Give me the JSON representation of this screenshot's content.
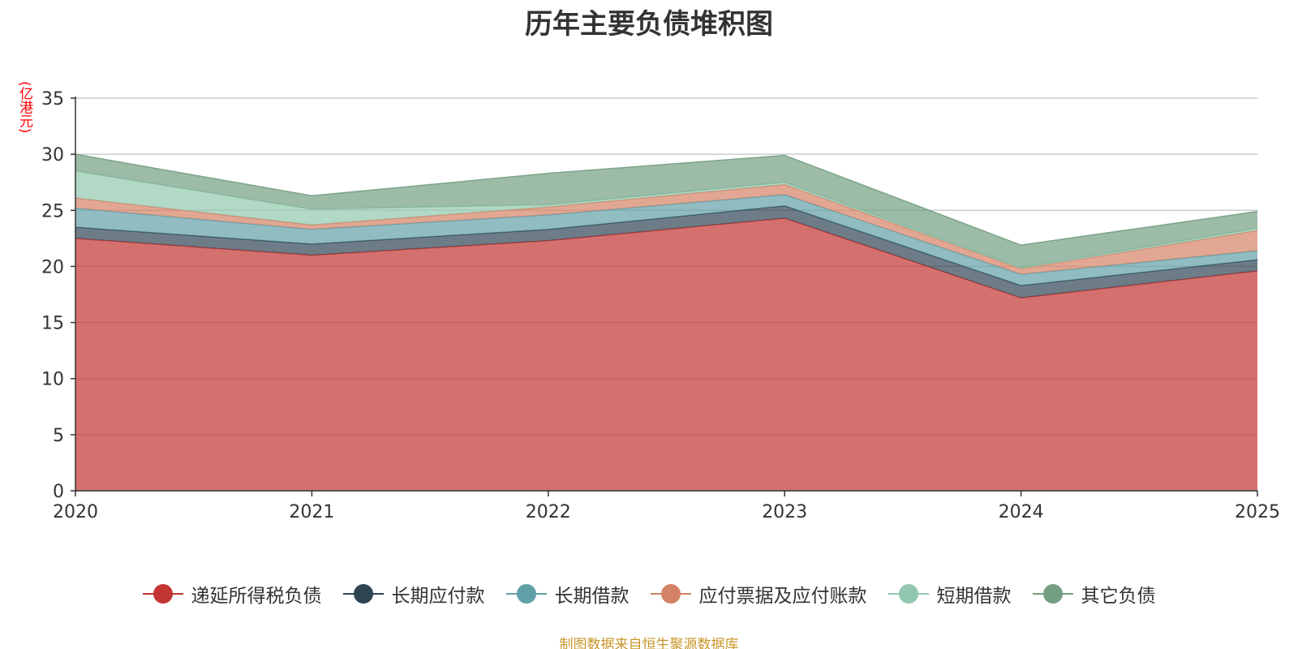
{
  "chart_data": {
    "type": "area",
    "stacked": true,
    "title": "历年主要负债堆积图",
    "unit": "(亿港元)",
    "categories": [
      "2020",
      "2021",
      "2022",
      "2023",
      "2024",
      "2025"
    ],
    "ylim": [
      0,
      35
    ],
    "yticks": [
      0,
      5,
      10,
      15,
      20,
      25,
      30,
      35
    ],
    "grid": true,
    "legend_position": "bottom",
    "series": [
      {
        "name": "递延所得税负债",
        "color": "#c23531",
        "values": [
          22.5,
          21.0,
          22.3,
          24.3,
          17.2,
          19.6
        ]
      },
      {
        "name": "长期应付款",
        "color": "#2f4554",
        "values": [
          1.0,
          1.0,
          1.0,
          1.1,
          1.1,
          1.0
        ]
      },
      {
        "name": "长期借款",
        "color": "#61a0a8",
        "values": [
          1.7,
          1.3,
          1.3,
          1.0,
          1.0,
          0.8
        ]
      },
      {
        "name": "应付票据及应付账款",
        "color": "#d48265",
        "values": [
          0.9,
          0.4,
          0.7,
          0.9,
          0.5,
          1.8
        ]
      },
      {
        "name": "短期借款",
        "color": "#91c7ae",
        "values": [
          2.4,
          1.4,
          0.2,
          0.2,
          0.1,
          0.2
        ]
      },
      {
        "name": "其它负债",
        "color": "#749f83",
        "values": [
          1.5,
          1.2,
          2.8,
          2.4,
          2.0,
          1.5
        ]
      }
    ]
  },
  "source_note": "制图数据来自恒生聚源数据库"
}
